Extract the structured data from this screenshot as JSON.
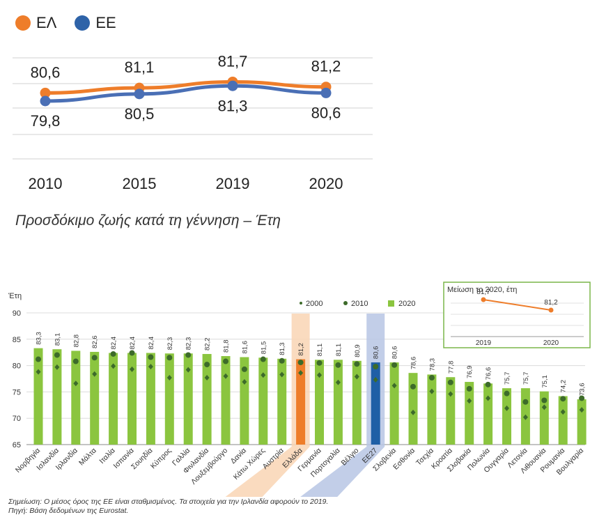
{
  "legend": {
    "items": [
      {
        "label": "ΕΛ",
        "color": "#ee7d2a"
      },
      {
        "label": "ΕΕ",
        "color": "#2e63a8"
      }
    ]
  },
  "subtitle": "Προσδόκιμο ζωής κατά τη γέννηση – Έτη",
  "notes": {
    "line1": "Σημείωση: Ο μέσος όρος της ΕΕ είναι σταθμισμένος. Τα στοιχεία για την Ιρλανδία αφορούν το 2019.",
    "line2": "Πηγή: Βάση δεδομένων της Eurostat."
  },
  "chart_data": [
    {
      "type": "line",
      "x": [
        "2010",
        "2015",
        "2019",
        "2020"
      ],
      "series": [
        {
          "name": "ΕΛ",
          "color": "#ee7d2a",
          "values": [
            80.6,
            81.1,
            81.7,
            81.2
          ],
          "labels": [
            "80,6",
            "81,1",
            "81,7",
            "81,2"
          ]
        },
        {
          "name": "ΕΕ",
          "color": "#4a6fb5",
          "values": [
            79.8,
            80.5,
            81.3,
            80.6
          ],
          "labels": [
            "79,8",
            "80,5",
            "81,3",
            "80,6"
          ]
        }
      ],
      "grid": true
    },
    {
      "type": "bar",
      "ylabel": "Έτη",
      "ylim": [
        65,
        90
      ],
      "yticks": [
        "65",
        "70",
        "75",
        "80",
        "85",
        "90"
      ],
      "legend": {
        "l2000": "2000",
        "l2010": "2010",
        "l2020": "2020"
      },
      "colors": {
        "bar": "#8bc53f",
        "greece": "#ee7d2a",
        "eu": "#1f5fa6",
        "marker": "#3d6b2a"
      },
      "categories": [
        "Νορβηγία",
        "Ισλανδία",
        "Ιρλανδία",
        "Μάλτα",
        "Ιταλία",
        "Ισπανία",
        "Σουηδία",
        "Κύπρος",
        "Γαλλία",
        "Φινλανδία",
        "Λουξεμβούργο",
        "Δανία",
        "Κάτω Χώρες",
        "Αυστρία",
        "Ελλάδα",
        "Γερμανία",
        "Πορτογαλία",
        "Βέλγιο",
        "ΕΕ27",
        "Σλοβενία",
        "Εσθονία",
        "Τσεχία",
        "Κροατία",
        "Σλοβακία",
        "Πολωνία",
        "Ουγγαρία",
        "Λετονία",
        "Λιθουανία",
        "Ρουμανία",
        "Βουλγαρία"
      ],
      "values_2020": [
        83.3,
        83.1,
        82.8,
        82.6,
        82.4,
        82.4,
        82.4,
        82.3,
        82.3,
        82.2,
        81.8,
        81.6,
        81.5,
        81.3,
        81.2,
        81.1,
        81.1,
        80.9,
        80.6,
        80.6,
        78.6,
        78.3,
        77.8,
        76.9,
        76.6,
        75.7,
        75.7,
        75.1,
        74.2,
        73.6
      ],
      "labels_2020": [
        "83,3",
        "83,1",
        "82,8",
        "82,6",
        "82,4",
        "82,4",
        "82,4",
        "82,3",
        "82,3",
        "82,2",
        "81,8",
        "81,6",
        "81,5",
        "81,3",
        "81,2",
        "81,1",
        "81,1",
        "80,9",
        "80,6",
        "80,6",
        "78,6",
        "78,3",
        "77,8",
        "76,9",
        "76,6",
        "75,7",
        "75,7",
        "75,1",
        "74,2",
        "73,6"
      ],
      "values_2010": [
        81.2,
        82.0,
        80.8,
        81.5,
        82.2,
        82.4,
        81.6,
        81.5,
        82.0,
        80.2,
        80.8,
        79.3,
        81.2,
        80.9,
        80.6,
        80.5,
        80.1,
        80.3,
        79.8,
        80.1,
        76.0,
        77.7,
        76.8,
        75.6,
        76.4,
        74.7,
        73.1,
        73.4,
        73.7,
        73.8
      ],
      "values_2000": [
        78.8,
        79.7,
        76.6,
        78.4,
        79.9,
        79.3,
        79.8,
        77.7,
        79.2,
        77.7,
        78.0,
        76.9,
        78.2,
        78.3,
        78.6,
        78.2,
        76.8,
        77.9,
        77.3,
        76.2,
        71.1,
        75.1,
        74.6,
        73.3,
        73.8,
        71.9,
        70.2,
        72.1,
        71.2,
        71.6
      ],
      "inset": {
        "title": "Μείωση το 2020, έτη",
        "x": [
          "2019",
          "2020"
        ],
        "values": [
          81.7,
          81.2
        ],
        "labels": [
          "81,7",
          "81,2"
        ],
        "color": "#ee7d2a",
        "border": "#7ab648"
      }
    }
  ]
}
